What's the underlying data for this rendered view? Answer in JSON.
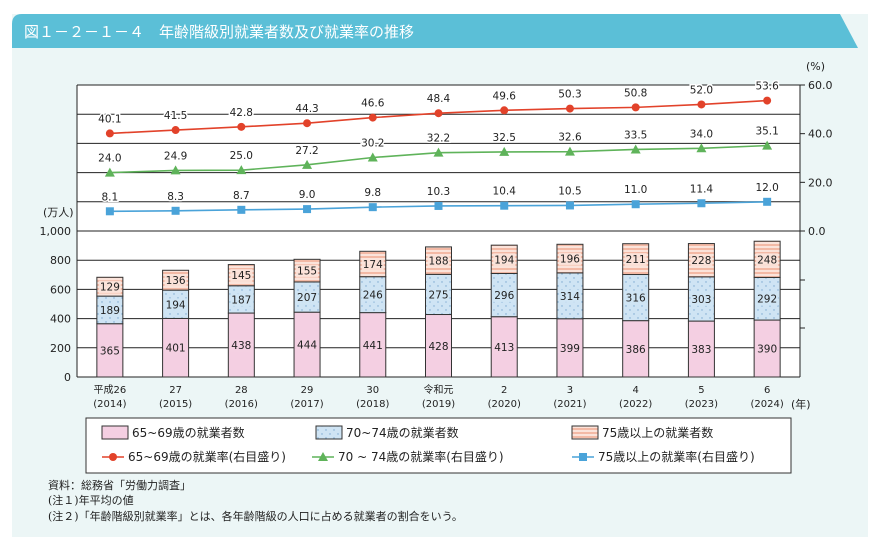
{
  "title": "図１－２－１－４　年齢階級別就業者数及び就業率の推移",
  "colors": {
    "title_bar": "#5bbfd7",
    "panel_bg": "#ecf6f6",
    "bar_65_69": "#f4cfe2",
    "bar_70_74": "#cfe4f4",
    "bar_75plus": "#f3b9a5",
    "line_65_69": "#e2422a",
    "line_70_74": "#5fb35a",
    "line_75plus": "#4aa3d9"
  },
  "chart_data": {
    "type": "bar+line",
    "categories": [
      {
        "era": "平成26",
        "year": "(2014)"
      },
      {
        "era": "27",
        "year": "(2015)"
      },
      {
        "era": "28",
        "year": "(2016)"
      },
      {
        "era": "29",
        "year": "(2017)"
      },
      {
        "era": "30",
        "year": "(2018)"
      },
      {
        "era": "令和元",
        "year": "(2019)"
      },
      {
        "era": "2",
        "year": "(2020)"
      },
      {
        "era": "3",
        "year": "(2021)"
      },
      {
        "era": "4",
        "year": "(2022)"
      },
      {
        "era": "5",
        "year": "(2023)"
      },
      {
        "era": "6",
        "year": "(2024)"
      }
    ],
    "x_unit": "(年)",
    "left_axis": {
      "unit": "(万人)",
      "ylim": [
        0,
        1000
      ],
      "ticks": [
        "0",
        "200",
        "400",
        "600",
        "800",
        "1,000"
      ]
    },
    "right_axis": {
      "unit": "(%)",
      "ylim": [
        0,
        60
      ],
      "ticks": [
        "0.0",
        "20.0",
        "40.0",
        "60.0"
      ]
    },
    "bar_series": [
      {
        "name": "65~69歳の就業者数",
        "values": [
          365,
          401,
          438,
          444,
          441,
          428,
          413,
          399,
          386,
          383,
          390
        ]
      },
      {
        "name": "70~74歳の就業者数",
        "values": [
          189,
          194,
          187,
          207,
          246,
          275,
          296,
          314,
          316,
          303,
          292
        ]
      },
      {
        "name": "75歳以上の就業者数",
        "values": [
          129,
          136,
          145,
          155,
          174,
          188,
          194,
          196,
          211,
          228,
          248
        ]
      }
    ],
    "line_series": [
      {
        "name": "65~69歳の就業率(右目盛り)",
        "marker": "circle",
        "values": [
          40.1,
          41.5,
          42.8,
          44.3,
          46.6,
          48.4,
          49.6,
          50.3,
          50.8,
          52.0,
          53.6
        ]
      },
      {
        "name": "70 ~ 74歳の就業率(右目盛り)",
        "marker": "triangle",
        "values": [
          24.0,
          24.9,
          25.0,
          27.2,
          30.2,
          32.2,
          32.5,
          32.6,
          33.5,
          34.0,
          35.1
        ]
      },
      {
        "name": "75歳以上の就業率(右目盛り)",
        "marker": "square",
        "values": [
          8.1,
          8.3,
          8.7,
          9.0,
          9.8,
          10.3,
          10.4,
          10.5,
          11.0,
          11.4,
          12.0
        ]
      }
    ],
    "grid": true,
    "legend_position": "bottom"
  },
  "notes": [
    "資料：総務省「労働力調査」",
    "(注１)年平均の値",
    "(注２)「年齢階級別就業率」とは、各年齢階級の人口に占める就業者の割合をいう。"
  ]
}
